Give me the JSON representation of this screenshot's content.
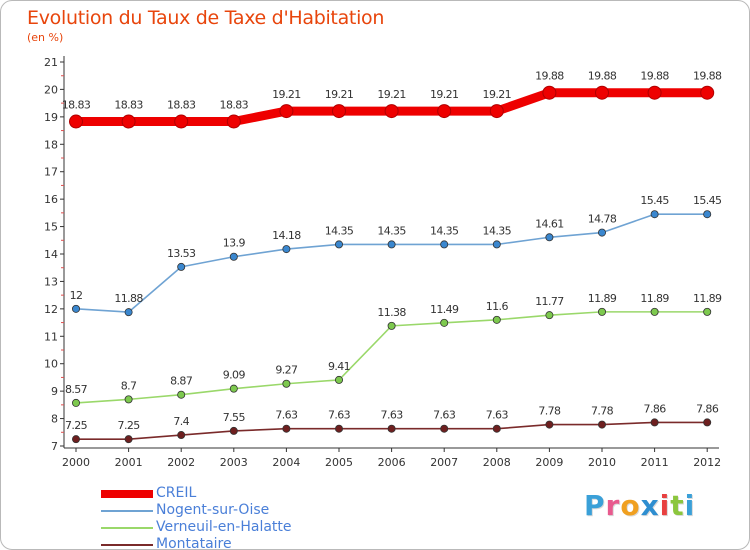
{
  "title": "Evolution du Taux de Taxe d'Habitation",
  "subtitle": "(en %)",
  "brand": {
    "letters": [
      "P",
      "r",
      "o",
      "x",
      "i",
      "t",
      "i"
    ],
    "colors": [
      "#3aa0d8",
      "#e85a8e",
      "#f0a020",
      "#2e8ed0",
      "#e84040",
      "#8cc63e",
      "#3aa0d8"
    ]
  },
  "chart_data": {
    "type": "line",
    "x": [
      "2000",
      "2001",
      "2002",
      "2003",
      "2004",
      "2005",
      "2006",
      "2007",
      "2008",
      "2009",
      "2010",
      "2011",
      "2012"
    ],
    "ylim": [
      7,
      21
    ],
    "yticks": [
      7,
      8,
      9,
      10,
      11,
      12,
      13,
      14,
      15,
      16,
      17,
      18,
      19,
      20,
      21
    ],
    "grid": false,
    "legend_position": "bottom-left",
    "series": [
      {
        "name": "CREIL",
        "color": "#ee0000",
        "emphasis": true,
        "values": [
          18.83,
          18.83,
          18.83,
          18.83,
          19.21,
          19.21,
          19.21,
          19.21,
          19.21,
          19.88,
          19.88,
          19.88,
          19.88
        ],
        "labels": [
          "18.83",
          "18.83",
          "18.83",
          "18.83",
          "19.21",
          "19.21",
          "19.21",
          "19.21",
          "19.21",
          "19.88",
          "19.88",
          "19.88",
          "19.88"
        ]
      },
      {
        "name": "Nogent-sur-Oise",
        "color": "#6fa3d3",
        "marker": "#3a87cf",
        "emphasis": false,
        "values": [
          12,
          11.88,
          13.53,
          13.9,
          14.18,
          14.35,
          14.35,
          14.35,
          14.35,
          14.61,
          14.78,
          15.45,
          15.45
        ],
        "labels": [
          "12",
          "11.88",
          "13.53",
          "13.9",
          "14.18",
          "14.35",
          "14.35",
          "14.35",
          "14.35",
          "14.61",
          "14.78",
          "15.45",
          "15.45"
        ]
      },
      {
        "name": "Verneuil-en-Halatte",
        "color": "#9ad86a",
        "marker": "#7dc94e",
        "emphasis": false,
        "values": [
          8.57,
          8.7,
          8.87,
          9.09,
          9.27,
          9.41,
          11.38,
          11.49,
          11.6,
          11.77,
          11.89,
          11.89,
          11.89
        ],
        "labels": [
          "8.57",
          "8.7",
          "8.87",
          "9.09",
          "9.27",
          "9.41",
          "11.38",
          "11.49",
          "11.6",
          "11.77",
          "11.89",
          "11.89",
          "11.89"
        ]
      },
      {
        "name": "Montataire",
        "color": "#7a2a2a",
        "marker": "#6e1f1f",
        "emphasis": false,
        "values": [
          7.25,
          7.25,
          7.4,
          7.55,
          7.63,
          7.63,
          7.63,
          7.63,
          7.63,
          7.78,
          7.78,
          7.86,
          7.86
        ],
        "labels": [
          "7.25",
          "7.25",
          "7.4",
          "7.55",
          "7.63",
          "7.63",
          "7.63",
          "7.63",
          "7.63",
          "7.78",
          "7.78",
          "7.86",
          "7.86"
        ]
      }
    ]
  }
}
